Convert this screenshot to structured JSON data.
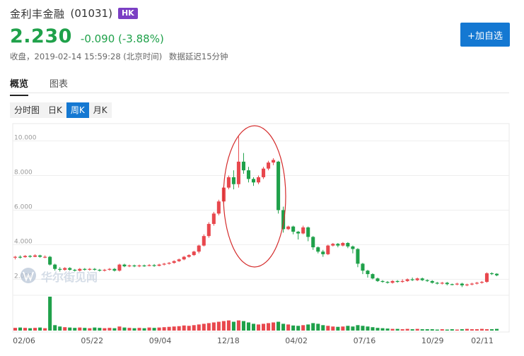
{
  "header": {
    "stock_name": "金利丰金融",
    "stock_code": "(01031)",
    "market_badge": "HK",
    "price": "2.230",
    "change": "-0.090 (-3.88%)",
    "status": "收盘，2019-02-14 15:59:28 (北京时间)",
    "delay_note": "数据延迟15分钟",
    "price_color": "#1fa14a"
  },
  "actions": {
    "add_watchlist": "+加自选"
  },
  "tabs": [
    {
      "label": "概览",
      "active": true
    },
    {
      "label": "图表",
      "active": false
    }
  ],
  "periods": [
    {
      "label": "分时图",
      "active": false
    },
    {
      "label": "日K",
      "active": false
    },
    {
      "label": "周K",
      "active": true
    },
    {
      "label": "月K",
      "active": false
    }
  ],
  "watermark": "华尔街见闻",
  "chart_data": {
    "type": "candlestick",
    "y_tick_labels": [
      "10.000",
      "8.000",
      "6.000",
      "4.000",
      "2.000"
    ],
    "y_ticks": [
      10,
      8,
      6,
      4,
      2
    ],
    "ylim": [
      1.2,
      11
    ],
    "x_tick_labels": [
      "02/06",
      "05/22",
      "09/04",
      "12/18",
      "04/02",
      "07/16",
      "10/29",
      "02/11"
    ],
    "colors": {
      "up": "#e8474d",
      "down": "#1fa14a"
    },
    "candles": [
      [
        3.25,
        3.3,
        3.15,
        3.35
      ],
      [
        3.3,
        3.28,
        3.2,
        3.38
      ],
      [
        3.28,
        3.35,
        3.25,
        3.4
      ],
      [
        3.35,
        3.3,
        3.25,
        3.4
      ],
      [
        3.3,
        3.38,
        3.28,
        3.45
      ],
      [
        3.38,
        3.3,
        3.25,
        3.42
      ],
      [
        3.3,
        3.3,
        3.22,
        3.38
      ],
      [
        3.3,
        2.85,
        2.8,
        3.35
      ],
      [
        2.85,
        2.6,
        2.5,
        2.9
      ],
      [
        2.6,
        2.55,
        2.45,
        2.7
      ],
      [
        2.55,
        2.65,
        2.5,
        2.7
      ],
      [
        2.65,
        2.55,
        2.5,
        2.7
      ],
      [
        2.55,
        2.5,
        2.45,
        2.6
      ],
      [
        2.5,
        2.6,
        2.45,
        2.65
      ],
      [
        2.6,
        2.55,
        2.5,
        2.65
      ],
      [
        2.55,
        2.6,
        2.5,
        2.65
      ],
      [
        2.6,
        2.55,
        2.5,
        2.65
      ],
      [
        2.55,
        2.5,
        2.45,
        2.6
      ],
      [
        2.5,
        2.55,
        2.45,
        2.6
      ],
      [
        2.55,
        2.6,
        2.5,
        2.65
      ],
      [
        2.6,
        2.5,
        2.45,
        2.65
      ],
      [
        2.5,
        2.85,
        2.45,
        2.9
      ],
      [
        2.85,
        2.75,
        2.7,
        2.9
      ],
      [
        2.75,
        2.8,
        2.7,
        2.85
      ],
      [
        2.8,
        2.75,
        2.7,
        2.85
      ],
      [
        2.75,
        2.8,
        2.7,
        2.85
      ],
      [
        2.8,
        2.78,
        2.72,
        2.85
      ],
      [
        2.78,
        2.82,
        2.75,
        2.88
      ],
      [
        2.82,
        2.78,
        2.72,
        2.88
      ],
      [
        2.78,
        2.85,
        2.75,
        2.9
      ],
      [
        2.85,
        2.9,
        2.8,
        2.95
      ],
      [
        2.9,
        2.95,
        2.85,
        3.0
      ],
      [
        2.95,
        3.05,
        2.9,
        3.1
      ],
      [
        3.05,
        3.15,
        3.0,
        3.2
      ],
      [
        3.15,
        3.3,
        3.1,
        3.35
      ],
      [
        3.3,
        3.4,
        3.25,
        3.45
      ],
      [
        3.4,
        3.6,
        3.35,
        3.65
      ],
      [
        3.6,
        3.95,
        3.5,
        4.0
      ],
      [
        3.95,
        4.5,
        3.9,
        4.6
      ],
      [
        4.5,
        5.2,
        4.4,
        5.3
      ],
      [
        5.2,
        5.8,
        5.1,
        5.9
      ],
      [
        5.8,
        6.5,
        5.7,
        6.6
      ],
      [
        6.5,
        7.3,
        6.4,
        7.4
      ],
      [
        7.3,
        7.9,
        7.2,
        8.0
      ],
      [
        7.9,
        7.5,
        7.2,
        8.3
      ],
      [
        7.5,
        8.8,
        7.3,
        10.25
      ],
      [
        8.8,
        8.3,
        8.1,
        9.3
      ],
      [
        8.3,
        7.8,
        7.6,
        8.5
      ],
      [
        7.8,
        7.6,
        7.4,
        7.9
      ],
      [
        7.6,
        7.9,
        7.5,
        8.0
      ],
      [
        7.9,
        8.4,
        7.8,
        8.5
      ],
      [
        8.4,
        8.75,
        8.3,
        8.85
      ],
      [
        8.75,
        8.9,
        8.6,
        9.0
      ],
      [
        8.8,
        6.0,
        5.8,
        8.85
      ],
      [
        6.0,
        4.9,
        4.7,
        6.2
      ],
      [
        4.9,
        5.05,
        4.85,
        5.1
      ],
      [
        5.05,
        4.75,
        4.6,
        5.1
      ],
      [
        4.75,
        4.65,
        4.3,
        4.8
      ],
      [
        4.65,
        5.0,
        4.6,
        5.1
      ],
      [
        5.0,
        4.45,
        4.2,
        5.05
      ],
      [
        4.45,
        3.85,
        3.7,
        4.5
      ],
      [
        3.85,
        3.6,
        3.5,
        3.9
      ],
      [
        3.6,
        3.45,
        3.3,
        3.7
      ],
      [
        3.45,
        3.95,
        3.4,
        4.0
      ],
      [
        3.95,
        4.05,
        3.9,
        4.1
      ],
      [
        4.05,
        3.95,
        3.85,
        4.1
      ],
      [
        3.95,
        4.1,
        3.9,
        4.15
      ],
      [
        4.1,
        3.9,
        3.8,
        4.15
      ],
      [
        3.9,
        3.75,
        3.5,
        3.95
      ],
      [
        3.75,
        2.9,
        2.7,
        3.8
      ],
      [
        2.9,
        2.5,
        2.3,
        2.95
      ],
      [
        2.5,
        2.3,
        2.1,
        2.55
      ],
      [
        2.3,
        2.05,
        2.0,
        2.35
      ],
      [
        2.05,
        1.9,
        1.85,
        2.1
      ],
      [
        1.9,
        1.85,
        1.8,
        1.95
      ],
      [
        1.85,
        1.8,
        1.75,
        1.9
      ],
      [
        1.8,
        1.9,
        1.75,
        1.95
      ],
      [
        1.9,
        1.85,
        1.8,
        1.95
      ],
      [
        1.85,
        1.9,
        1.8,
        2.0
      ],
      [
        1.9,
        2.0,
        1.85,
        2.05
      ],
      [
        2.0,
        1.95,
        1.9,
        2.1
      ],
      [
        1.95,
        2.05,
        1.9,
        2.1
      ],
      [
        2.05,
        1.95,
        1.9,
        2.1
      ],
      [
        1.95,
        1.9,
        1.85,
        2.0
      ],
      [
        1.9,
        1.8,
        1.75,
        1.95
      ],
      [
        1.8,
        1.75,
        1.7,
        1.85
      ],
      [
        1.75,
        1.8,
        1.7,
        1.85
      ],
      [
        1.8,
        1.72,
        1.65,
        1.85
      ],
      [
        1.72,
        1.7,
        1.65,
        1.75
      ],
      [
        1.7,
        1.75,
        1.65,
        1.8
      ],
      [
        1.75,
        1.65,
        1.55,
        1.8
      ],
      [
        1.65,
        1.7,
        1.6,
        1.75
      ],
      [
        1.7,
        1.75,
        1.65,
        1.8
      ],
      [
        1.75,
        1.8,
        1.7,
        1.85
      ],
      [
        1.8,
        1.85,
        1.75,
        1.9
      ],
      [
        1.85,
        2.35,
        1.8,
        2.4
      ],
      [
        2.35,
        2.3,
        2.25,
        2.4
      ],
      [
        2.32,
        2.23,
        2.18,
        2.35
      ]
    ],
    "volume": [
      0.08,
      0.09,
      0.08,
      0.07,
      0.08,
      0.09,
      0.07,
      1.0,
      0.16,
      0.12,
      0.1,
      0.09,
      0.08,
      0.09,
      0.08,
      0.07,
      0.09,
      0.08,
      0.07,
      0.08,
      0.07,
      0.12,
      0.09,
      0.08,
      0.07,
      0.08,
      0.07,
      0.09,
      0.08,
      0.09,
      0.1,
      0.11,
      0.12,
      0.13,
      0.15,
      0.14,
      0.16,
      0.18,
      0.2,
      0.22,
      0.24,
      0.26,
      0.28,
      0.3,
      0.26,
      0.3,
      0.28,
      0.24,
      0.2,
      0.18,
      0.2,
      0.22,
      0.24,
      0.26,
      0.2,
      0.18,
      0.15,
      0.14,
      0.16,
      0.18,
      0.22,
      0.2,
      0.16,
      0.14,
      0.12,
      0.11,
      0.12,
      0.14,
      0.12,
      0.16,
      0.14,
      0.12,
      0.1,
      0.08,
      0.07,
      0.06,
      0.05,
      0.05,
      0.04,
      0.05,
      0.04,
      0.05,
      0.04,
      0.04,
      0.04,
      0.03,
      0.04,
      0.03,
      0.04,
      0.03,
      0.04,
      0.05,
      0.04,
      0.04,
      0.05,
      0.04,
      0.04,
      0.05
    ]
  }
}
